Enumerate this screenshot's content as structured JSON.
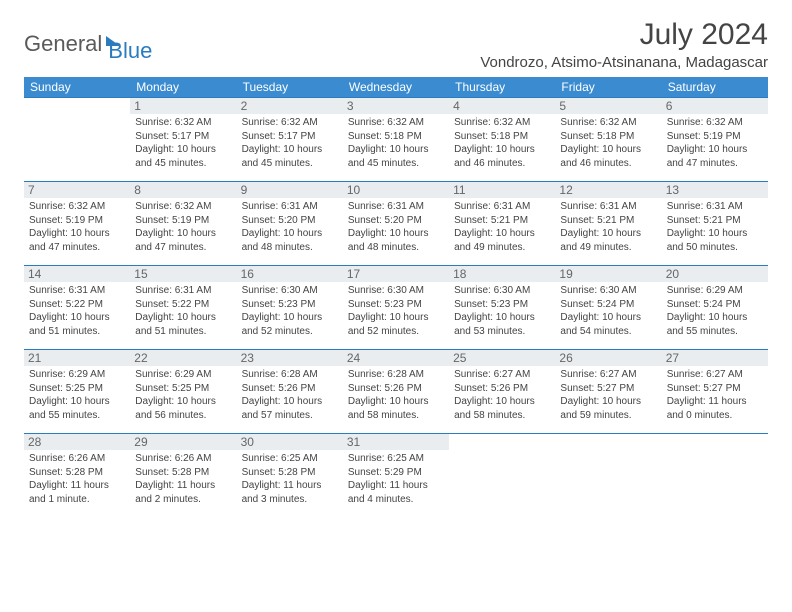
{
  "logo": {
    "general": "General",
    "blue": "Blue"
  },
  "title": "July 2024",
  "location": "Vondrozo, Atsimo-Atsinanana, Madagascar",
  "headers": [
    "Sunday",
    "Monday",
    "Tuesday",
    "Wednesday",
    "Thursday",
    "Friday",
    "Saturday"
  ],
  "header_bg": "#3a8bd0",
  "header_fg": "#ffffff",
  "border_color": "#2b7bbf",
  "daynum_bg": "#e9edf0",
  "weeks": [
    [
      null,
      {
        "n": "1",
        "sr": "6:32 AM",
        "ss": "5:17 PM",
        "dl": "10 hours and 45 minutes."
      },
      {
        "n": "2",
        "sr": "6:32 AM",
        "ss": "5:17 PM",
        "dl": "10 hours and 45 minutes."
      },
      {
        "n": "3",
        "sr": "6:32 AM",
        "ss": "5:18 PM",
        "dl": "10 hours and 45 minutes."
      },
      {
        "n": "4",
        "sr": "6:32 AM",
        "ss": "5:18 PM",
        "dl": "10 hours and 46 minutes."
      },
      {
        "n": "5",
        "sr": "6:32 AM",
        "ss": "5:18 PM",
        "dl": "10 hours and 46 minutes."
      },
      {
        "n": "6",
        "sr": "6:32 AM",
        "ss": "5:19 PM",
        "dl": "10 hours and 47 minutes."
      }
    ],
    [
      {
        "n": "7",
        "sr": "6:32 AM",
        "ss": "5:19 PM",
        "dl": "10 hours and 47 minutes."
      },
      {
        "n": "8",
        "sr": "6:32 AM",
        "ss": "5:19 PM",
        "dl": "10 hours and 47 minutes."
      },
      {
        "n": "9",
        "sr": "6:31 AM",
        "ss": "5:20 PM",
        "dl": "10 hours and 48 minutes."
      },
      {
        "n": "10",
        "sr": "6:31 AM",
        "ss": "5:20 PM",
        "dl": "10 hours and 48 minutes."
      },
      {
        "n": "11",
        "sr": "6:31 AM",
        "ss": "5:21 PM",
        "dl": "10 hours and 49 minutes."
      },
      {
        "n": "12",
        "sr": "6:31 AM",
        "ss": "5:21 PM",
        "dl": "10 hours and 49 minutes."
      },
      {
        "n": "13",
        "sr": "6:31 AM",
        "ss": "5:21 PM",
        "dl": "10 hours and 50 minutes."
      }
    ],
    [
      {
        "n": "14",
        "sr": "6:31 AM",
        "ss": "5:22 PM",
        "dl": "10 hours and 51 minutes."
      },
      {
        "n": "15",
        "sr": "6:31 AM",
        "ss": "5:22 PM",
        "dl": "10 hours and 51 minutes."
      },
      {
        "n": "16",
        "sr": "6:30 AM",
        "ss": "5:23 PM",
        "dl": "10 hours and 52 minutes."
      },
      {
        "n": "17",
        "sr": "6:30 AM",
        "ss": "5:23 PM",
        "dl": "10 hours and 52 minutes."
      },
      {
        "n": "18",
        "sr": "6:30 AM",
        "ss": "5:23 PM",
        "dl": "10 hours and 53 minutes."
      },
      {
        "n": "19",
        "sr": "6:30 AM",
        "ss": "5:24 PM",
        "dl": "10 hours and 54 minutes."
      },
      {
        "n": "20",
        "sr": "6:29 AM",
        "ss": "5:24 PM",
        "dl": "10 hours and 55 minutes."
      }
    ],
    [
      {
        "n": "21",
        "sr": "6:29 AM",
        "ss": "5:25 PM",
        "dl": "10 hours and 55 minutes."
      },
      {
        "n": "22",
        "sr": "6:29 AM",
        "ss": "5:25 PM",
        "dl": "10 hours and 56 minutes."
      },
      {
        "n": "23",
        "sr": "6:28 AM",
        "ss": "5:26 PM",
        "dl": "10 hours and 57 minutes."
      },
      {
        "n": "24",
        "sr": "6:28 AM",
        "ss": "5:26 PM",
        "dl": "10 hours and 58 minutes."
      },
      {
        "n": "25",
        "sr": "6:27 AM",
        "ss": "5:26 PM",
        "dl": "10 hours and 58 minutes."
      },
      {
        "n": "26",
        "sr": "6:27 AM",
        "ss": "5:27 PM",
        "dl": "10 hours and 59 minutes."
      },
      {
        "n": "27",
        "sr": "6:27 AM",
        "ss": "5:27 PM",
        "dl": "11 hours and 0 minutes."
      }
    ],
    [
      {
        "n": "28",
        "sr": "6:26 AM",
        "ss": "5:28 PM",
        "dl": "11 hours and 1 minute."
      },
      {
        "n": "29",
        "sr": "6:26 AM",
        "ss": "5:28 PM",
        "dl": "11 hours and 2 minutes."
      },
      {
        "n": "30",
        "sr": "6:25 AM",
        "ss": "5:28 PM",
        "dl": "11 hours and 3 minutes."
      },
      {
        "n": "31",
        "sr": "6:25 AM",
        "ss": "5:29 PM",
        "dl": "11 hours and 4 minutes."
      },
      null,
      null,
      null
    ]
  ],
  "labels": {
    "sunrise": "Sunrise: ",
    "sunset": "Sunset: ",
    "daylight": "Daylight: "
  }
}
